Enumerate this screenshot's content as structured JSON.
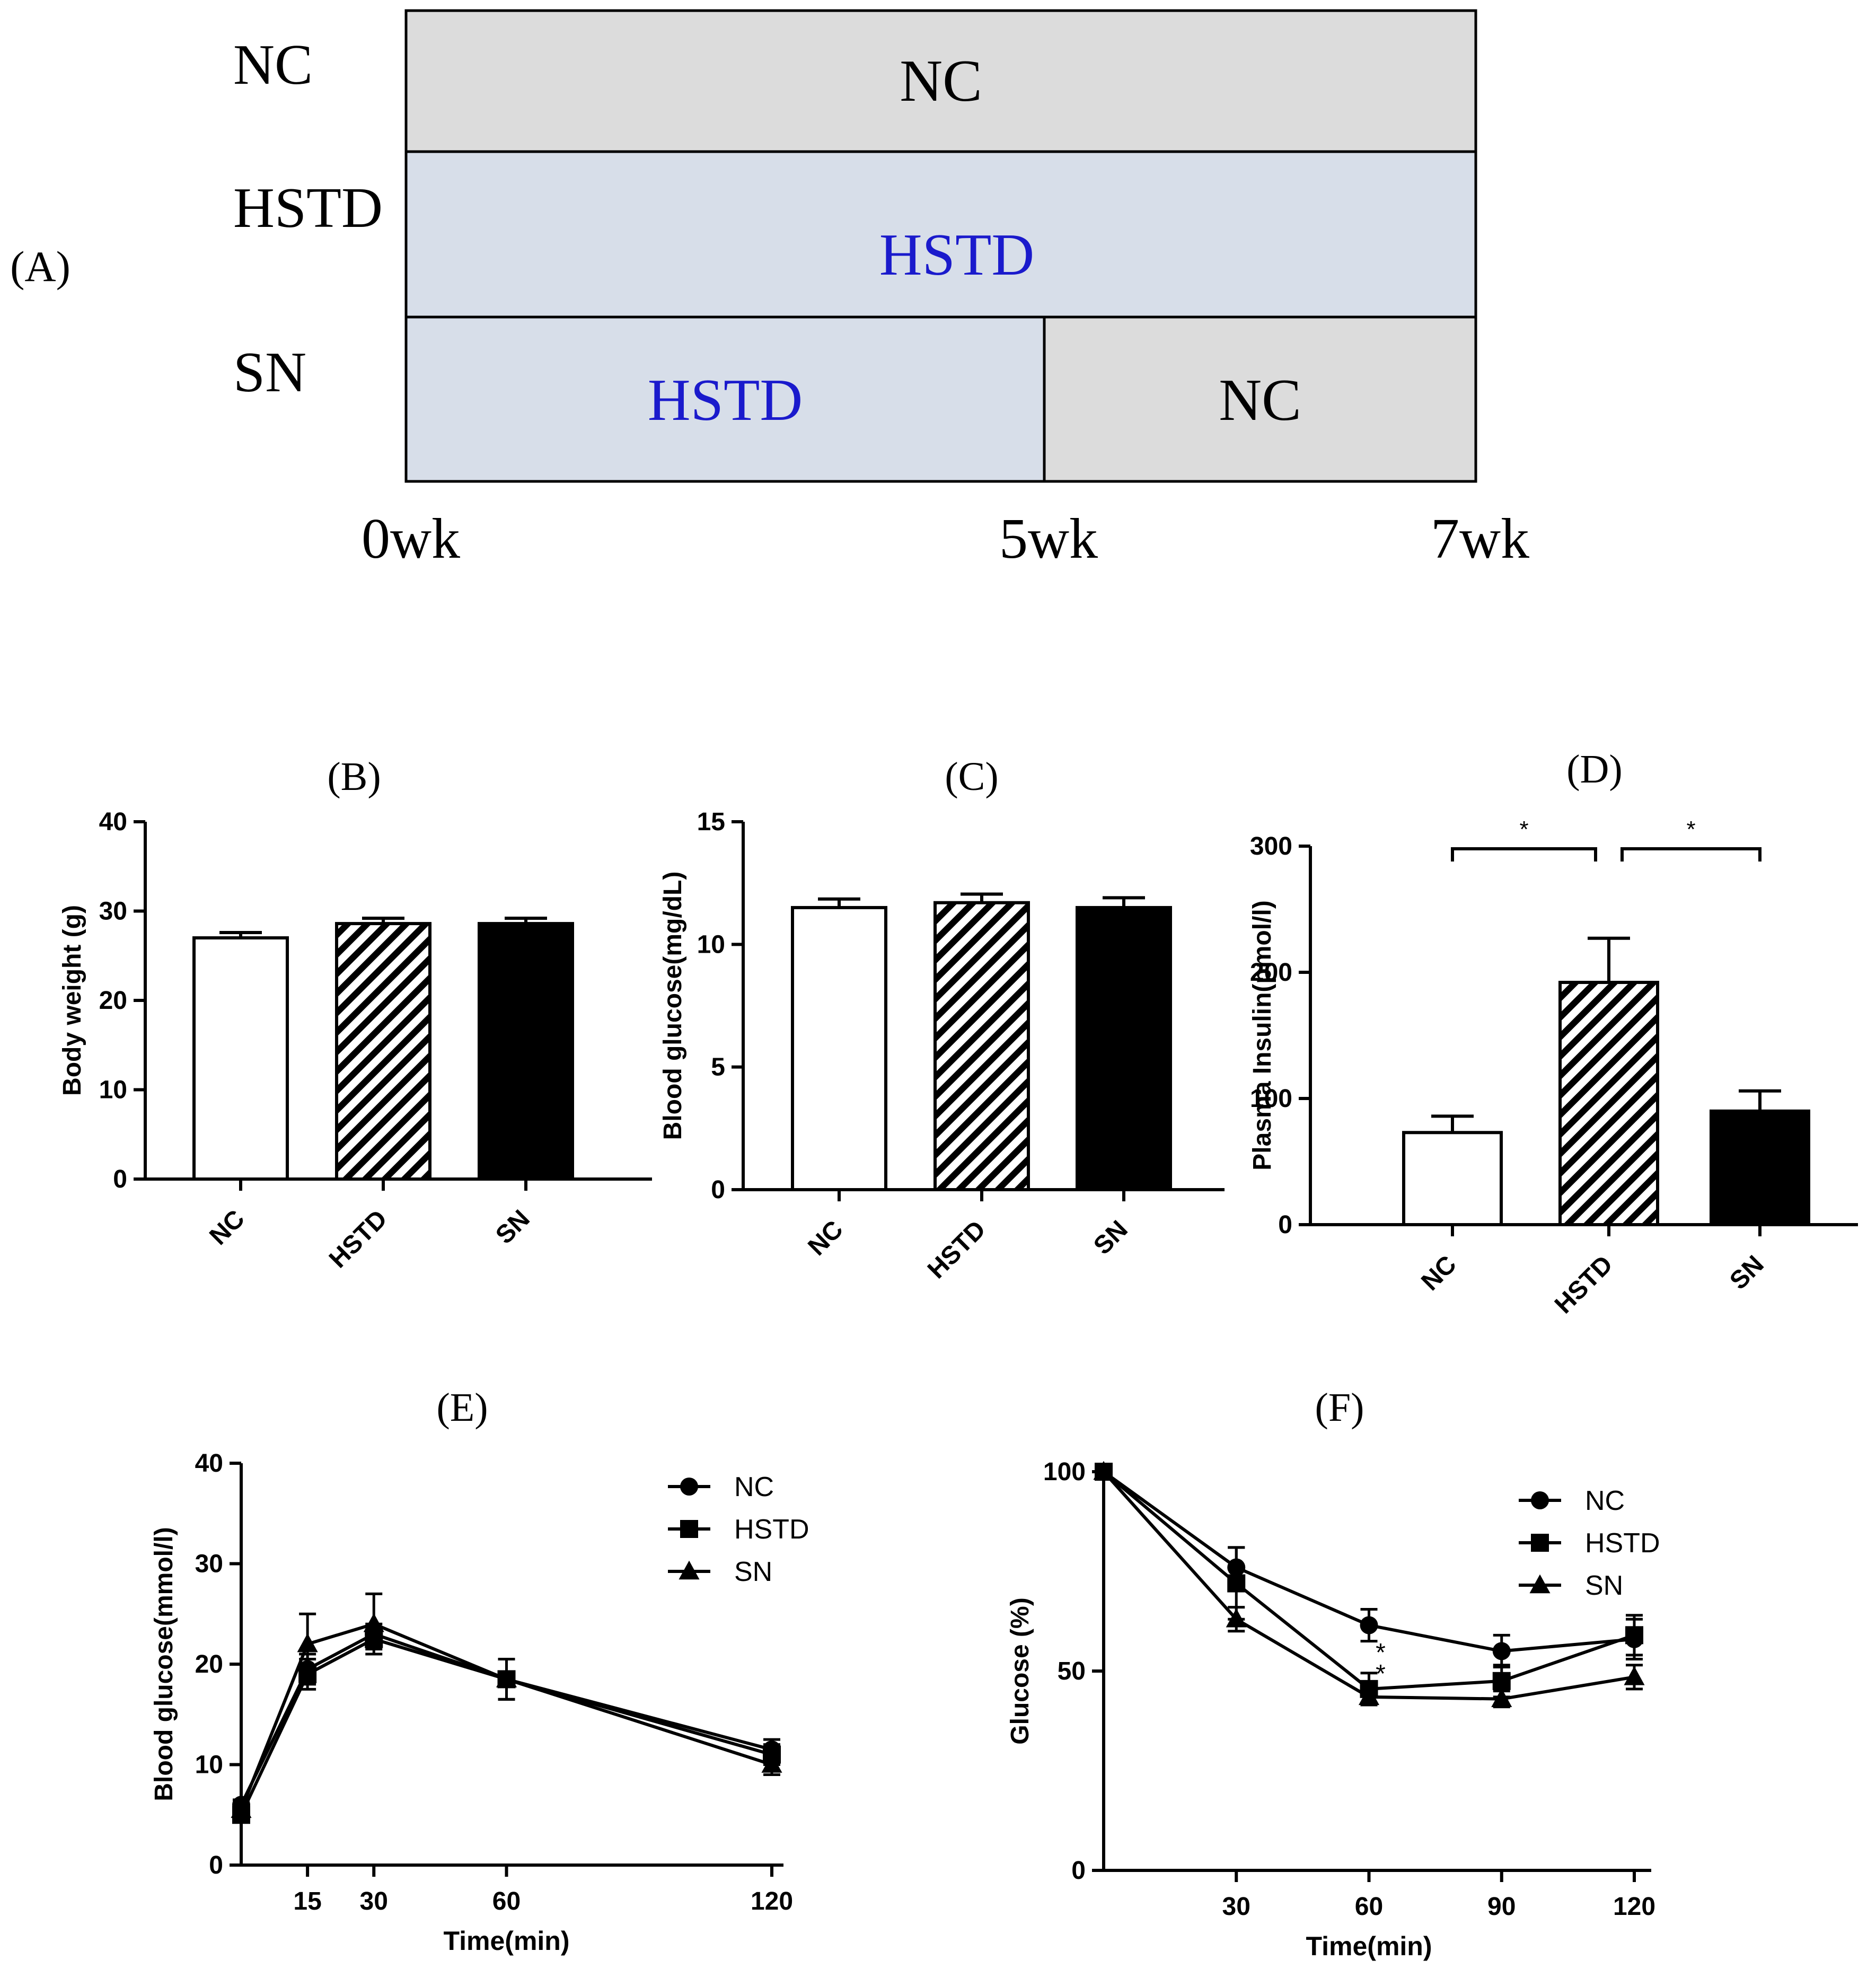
{
  "panel_a": {
    "label": "(A)",
    "rows": [
      {
        "group": "NC",
        "segments": [
          {
            "text": "NC",
            "kind": "nc"
          }
        ]
      },
      {
        "group": "HSTD",
        "segments": [
          {
            "text": "HSTD",
            "kind": "hstd"
          }
        ]
      },
      {
        "group": "SN",
        "segments": [
          {
            "text": "HSTD",
            "kind": "hstd"
          },
          {
            "text": "NC",
            "kind": "nc"
          }
        ]
      }
    ],
    "time_labels": [
      "0wk",
      "5wk",
      "7wk"
    ],
    "colors": {
      "nc_fill": "#dcdcdc",
      "hstd_fill": "#d7dee9",
      "hstd_text": "#1a1acc"
    }
  },
  "chart_data": [
    {
      "id": "B",
      "panel_label": "(B)",
      "type": "bar",
      "categories": [
        "NC",
        "HSTD",
        "SN"
      ],
      "values": [
        27.0,
        28.6,
        28.6
      ],
      "errors": [
        0.6,
        0.6,
        0.6
      ],
      "styles": [
        "open",
        "hatched",
        "solid"
      ],
      "ylabel": "Body weight (g)",
      "ylim": [
        0,
        40
      ],
      "yticks": [
        "0",
        "10",
        "20",
        "30",
        "40"
      ]
    },
    {
      "id": "C",
      "panel_label": "(C)",
      "type": "bar",
      "categories": [
        "NC",
        "HSTD",
        "SN"
      ],
      "values": [
        11.5,
        11.7,
        11.5
      ],
      "errors": [
        0.35,
        0.35,
        0.4
      ],
      "styles": [
        "open",
        "hatched",
        "solid"
      ],
      "ylabel": "Blood glucose(mg/dL)",
      "ylim": [
        0,
        15
      ],
      "yticks": [
        "0",
        "5",
        "10",
        "15"
      ]
    },
    {
      "id": "D",
      "panel_label": "(D)",
      "type": "bar",
      "categories": [
        "NC",
        "HSTD",
        "SN"
      ],
      "values": [
        73,
        192,
        90
      ],
      "errors": [
        13,
        35,
        16
      ],
      "styles": [
        "open",
        "hatched",
        "solid"
      ],
      "ylabel": "Plasma Insulin(pmol/l)",
      "ylim": [
        0,
        300
      ],
      "yticks": [
        "0",
        "100",
        "200",
        "300"
      ],
      "significance": [
        {
          "from": 0,
          "to": 1,
          "label": "*"
        },
        {
          "from": 1,
          "to": 2,
          "label": "*"
        }
      ]
    },
    {
      "id": "E",
      "panel_label": "(E)",
      "type": "line",
      "x": [
        0,
        15,
        30,
        60,
        120
      ],
      "xticks": [
        "15",
        "30",
        "60",
        "120"
      ],
      "xlabel": "Time(min)",
      "ylabel": "Blood glucose(mmol/l)",
      "ylim": [
        0,
        40
      ],
      "yticks": [
        "0",
        "10",
        "20",
        "30",
        "40"
      ],
      "xlim": [
        0,
        120
      ],
      "series": [
        {
          "name": "NC",
          "marker": "circle",
          "values": [
            6.0,
            19.5,
            23.0,
            18.5,
            11.5
          ],
          "errors": [
            0.5,
            1.5,
            1.0,
            2.0,
            1.0
          ]
        },
        {
          "name": "HSTD",
          "marker": "square",
          "values": [
            5.0,
            19.0,
            22.5,
            18.5,
            11.0
          ],
          "errors": [
            0.5,
            1.5,
            1.0,
            2.0,
            1.0
          ]
        },
        {
          "name": "SN",
          "marker": "triangle",
          "values": [
            5.5,
            22.0,
            24.0,
            18.5,
            10.0
          ],
          "errors": [
            0.5,
            3.0,
            3.0,
            2.0,
            1.0
          ]
        }
      ]
    },
    {
      "id": "F",
      "panel_label": "(F)",
      "type": "line",
      "x": [
        0,
        30,
        60,
        90,
        120
      ],
      "xticks": [
        "30",
        "60",
        "90",
        "120"
      ],
      "xlabel": "Time(min)",
      "ylabel": "Glucose  (%)",
      "ylim": [
        0,
        100
      ],
      "yticks": [
        "0",
        "50",
        "100"
      ],
      "xlim": [
        0,
        120
      ],
      "series": [
        {
          "name": "NC",
          "marker": "circle",
          "values": [
            100,
            76,
            61.5,
            55,
            58
          ],
          "errors": [
            0,
            5,
            4,
            4,
            5
          ]
        },
        {
          "name": "HSTD",
          "marker": "square",
          "values": [
            100,
            72,
            45.5,
            47.5,
            59
          ],
          "errors": [
            0,
            9,
            4,
            4,
            5
          ]
        },
        {
          "name": "SN",
          "marker": "triangle",
          "values": [
            100,
            63,
            43.5,
            43,
            48.5
          ],
          "errors": [
            0,
            3,
            2,
            2,
            3
          ]
        }
      ],
      "annotations": [
        {
          "x": 60,
          "text": "*"
        },
        {
          "x": 60,
          "text": "*"
        }
      ]
    }
  ]
}
